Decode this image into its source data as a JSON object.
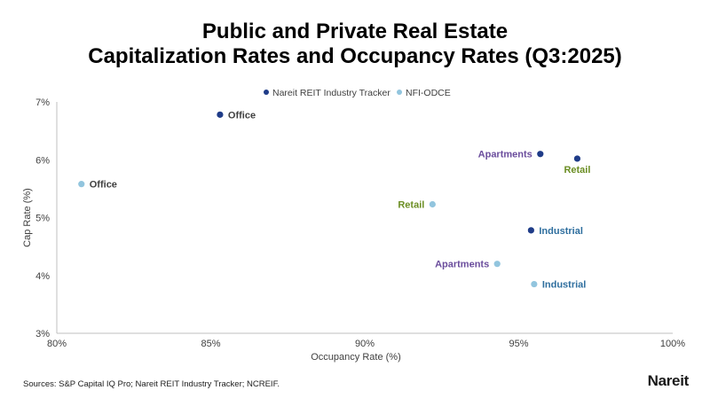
{
  "title_line1": "Public and Private Real Estate",
  "title_line2": "Capitalization Rates and Occupancy Rates (Q3:2025)",
  "source": "Sources: S&P Capital IQ Pro; Nareit REIT Industry Tracker; NCREIF.",
  "logo": "Nareit",
  "chart_data": {
    "type": "scatter",
    "xlabel": "Occupancy Rate (%)",
    "ylabel": "Cap Rate (%)",
    "xlim": [
      80,
      100
    ],
    "ylim": [
      3,
      7
    ],
    "xticks": [
      80,
      85,
      90,
      95,
      100
    ],
    "xtick_labels": [
      "80%",
      "85%",
      "90%",
      "95%",
      "100%"
    ],
    "yticks": [
      3,
      4,
      5,
      6,
      7
    ],
    "ytick_labels": [
      "3%",
      "4%",
      "5%",
      "6%",
      "7%"
    ],
    "grid": false,
    "legend_position": "top-center",
    "series": [
      {
        "name": "Nareit REIT Industry Tracker",
        "color": "#1f3c88",
        "points": [
          {
            "label": "Office",
            "x": 85.3,
            "y": 6.78,
            "label_side": "right",
            "label_color": "#404040"
          },
          {
            "label": "Apartments",
            "x": 95.7,
            "y": 6.1,
            "label_side": "left",
            "label_color": "#6a4c9c"
          },
          {
            "label": "Retail",
            "x": 96.9,
            "y": 6.02,
            "label_side": "below",
            "label_color": "#6b8e23"
          },
          {
            "label": "Industrial",
            "x": 95.4,
            "y": 4.78,
            "label_side": "right",
            "label_color": "#2e6e9e"
          }
        ]
      },
      {
        "name": "NFI-ODCE",
        "color": "#92c5de",
        "points": [
          {
            "label": "Office",
            "x": 80.8,
            "y": 5.58,
            "label_side": "right",
            "label_color": "#404040"
          },
          {
            "label": "Retail",
            "x": 92.2,
            "y": 5.23,
            "label_side": "left",
            "label_color": "#6b8e23"
          },
          {
            "label": "Apartments",
            "x": 94.3,
            "y": 4.2,
            "label_side": "left",
            "label_color": "#6a4c9c"
          },
          {
            "label": "Industrial",
            "x": 95.5,
            "y": 3.85,
            "label_side": "right",
            "label_color": "#2e6e9e"
          }
        ]
      }
    ]
  }
}
